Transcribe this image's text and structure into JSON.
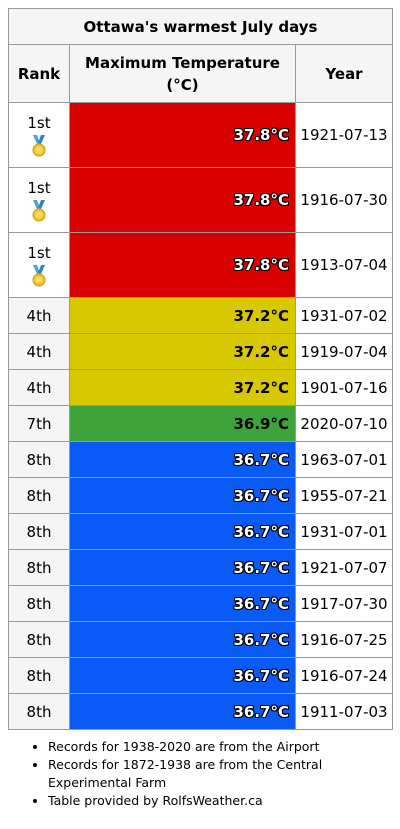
{
  "table": {
    "title": "Ottawa's warmest July days",
    "headers": {
      "rank": "Rank",
      "temp_line1": "Maximum Temperature",
      "temp_line2": "(°C)",
      "year": "Year"
    },
    "rows": [
      {
        "rank": "1st",
        "temp": "37.8°C",
        "date": "1921-07-13",
        "color": "#d90000",
        "medal": "gold-medal-icon"
      },
      {
        "rank": "1st",
        "temp": "37.8°C",
        "date": "1916-07-30",
        "color": "#d90000",
        "medal": "gold-medal-icon"
      },
      {
        "rank": "1st",
        "temp": "37.8°C",
        "date": "1913-07-04",
        "color": "#d90000",
        "medal": "gold-medal-icon"
      },
      {
        "rank": "4th",
        "temp": "37.2°C",
        "date": "1931-07-02",
        "color": "#d8c800"
      },
      {
        "rank": "4th",
        "temp": "37.2°C",
        "date": "1919-07-04",
        "color": "#d8c800"
      },
      {
        "rank": "4th",
        "temp": "37.2°C",
        "date": "1901-07-16",
        "color": "#d8c800"
      },
      {
        "rank": "7th",
        "temp": "36.9°C",
        "date": "2020-07-10",
        "color": "#3ea33a"
      },
      {
        "rank": "8th",
        "temp": "36.7°C",
        "date": "1963-07-01",
        "color": "#0a5af5"
      },
      {
        "rank": "8th",
        "temp": "36.7°C",
        "date": "1955-07-21",
        "color": "#0a5af5"
      },
      {
        "rank": "8th",
        "temp": "36.7°C",
        "date": "1931-07-01",
        "color": "#0a5af5"
      },
      {
        "rank": "8th",
        "temp": "36.7°C",
        "date": "1921-07-07",
        "color": "#0a5af5"
      },
      {
        "rank": "8th",
        "temp": "36.7°C",
        "date": "1917-07-30",
        "color": "#0a5af5"
      },
      {
        "rank": "8th",
        "temp": "36.7°C",
        "date": "1916-07-25",
        "color": "#0a5af5"
      },
      {
        "rank": "8th",
        "temp": "36.7°C",
        "date": "1916-07-24",
        "color": "#0a5af5"
      },
      {
        "rank": "8th",
        "temp": "36.7°C",
        "date": "1911-07-03",
        "color": "#0a5af5"
      }
    ]
  },
  "notes": [
    "Records for 1938-2020 are from the Airport",
    "Records for 1872-1938 are from the Central Experimental Farm",
    "Table provided by RolfsWeather.ca"
  ]
}
